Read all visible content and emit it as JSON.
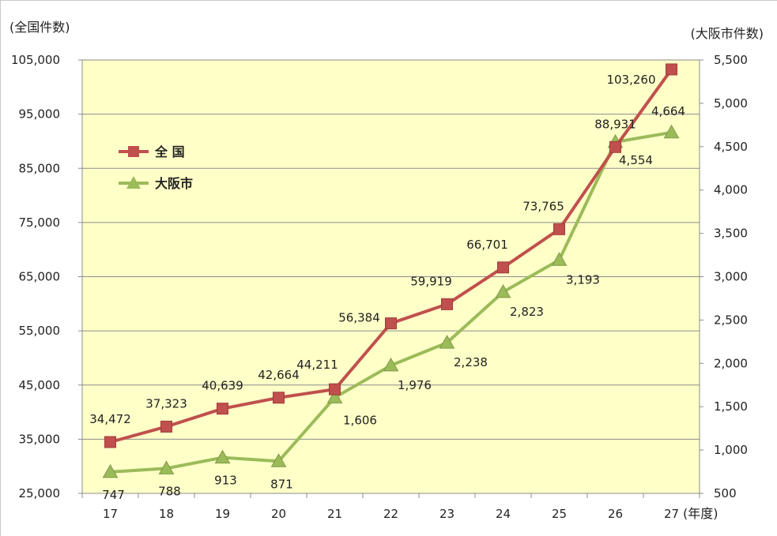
{
  "chart_data": {
    "type": "line",
    "y_left_unit": "(全国件数)",
    "y_right_unit": "(大阪市件数)",
    "x_unit": "(年度)",
    "categories": [
      "17",
      "18",
      "19",
      "20",
      "21",
      "22",
      "23",
      "24",
      "25",
      "26",
      "27"
    ],
    "y_left_ticks": [
      "105,000",
      "95,000",
      "85,000",
      "75,000",
      "65,000",
      "55,000",
      "45,000",
      "35,000",
      "25,000"
    ],
    "y_right_ticks": [
      "5,500",
      "5,000",
      "4,500",
      "4,000",
      "3,500",
      "3,000",
      "2,500",
      "2,000",
      "1,500",
      "1,000",
      "500"
    ],
    "y_left_range": [
      25000,
      105000
    ],
    "y_right_range": [
      500,
      5500
    ],
    "grid": true,
    "legend_position": "upper-left",
    "series": [
      {
        "name": "全 国",
        "axis": "left",
        "color": "#c0504d",
        "marker": "square",
        "values": [
          34472,
          37323,
          40639,
          42664,
          44211,
          56384,
          59919,
          66701,
          73765,
          88931,
          103260
        ],
        "labels": [
          "34,472",
          "37,323",
          "40,639",
          "42,664",
          "44,211",
          "56,384",
          "59,919",
          "66,701",
          "73,765",
          "88,931",
          "103,260"
        ]
      },
      {
        "name": "大阪市",
        "axis": "right",
        "color": "#9bbb59",
        "marker": "triangle",
        "values": [
          747,
          788,
          913,
          871,
          1606,
          1976,
          2238,
          2823,
          3193,
          4554,
          4664
        ],
        "labels": [
          "747",
          "788",
          "913",
          "871",
          "1,606",
          "1,976",
          "2,238",
          "2,823",
          "3,193",
          "4,554",
          "4,664"
        ]
      }
    ],
    "plot_background": "#ffffc8"
  }
}
